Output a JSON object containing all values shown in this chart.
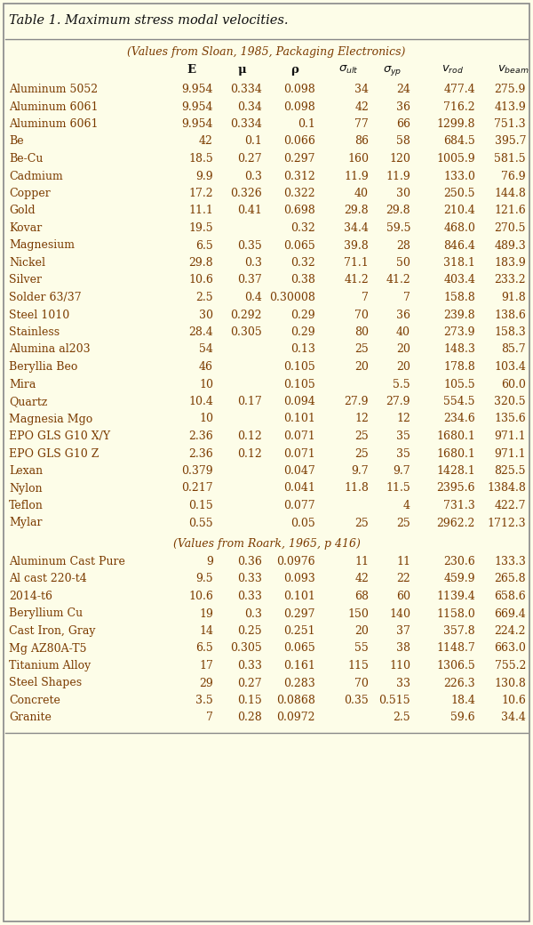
{
  "title": "Table 1. Maximum stress modal velocities.",
  "subtitle1": "(Values from Sloan, 1985, Packaging Electronics)",
  "subtitle2": "(Values from Roark, 1965, p 416)",
  "sloan_rows": [
    [
      "Aluminum 5052",
      "9.954",
      "0.334",
      "0.098",
      "34",
      "24",
      "477.4",
      "275.9"
    ],
    [
      "Aluminum 6061",
      "9.954",
      "0.34",
      "0.098",
      "42",
      "36",
      "716.2",
      "413.9"
    ],
    [
      "Aluminum 6061",
      "9.954",
      "0.334",
      "0.1",
      "77",
      "66",
      "1299.8",
      "751.3"
    ],
    [
      "Be",
      "42",
      "0.1",
      "0.066",
      "86",
      "58",
      "684.5",
      "395.7"
    ],
    [
      "Be-Cu",
      "18.5",
      "0.27",
      "0.297",
      "160",
      "120",
      "1005.9",
      "581.5"
    ],
    [
      "Cadmium",
      "9.9",
      "0.3",
      "0.312",
      "11.9",
      "11.9",
      "133.0",
      "76.9"
    ],
    [
      "Copper",
      "17.2",
      "0.326",
      "0.322",
      "40",
      "30",
      "250.5",
      "144.8"
    ],
    [
      "Gold",
      "11.1",
      "0.41",
      "0.698",
      "29.8",
      "29.8",
      "210.4",
      "121.6"
    ],
    [
      "Kovar",
      "19.5",
      "",
      "0.32",
      "34.4",
      "59.5",
      "468.0",
      "270.5"
    ],
    [
      "Magnesium",
      "6.5",
      "0.35",
      "0.065",
      "39.8",
      "28",
      "846.4",
      "489.3"
    ],
    [
      "Nickel",
      "29.8",
      "0.3",
      "0.32",
      "71.1",
      "50",
      "318.1",
      "183.9"
    ],
    [
      "Silver",
      "10.6",
      "0.37",
      "0.38",
      "41.2",
      "41.2",
      "403.4",
      "233.2"
    ],
    [
      "Solder 63/37",
      "2.5",
      "0.4",
      "0.30008",
      "7",
      "7",
      "158.8",
      "91.8"
    ],
    [
      "Steel 1010",
      "30",
      "0.292",
      "0.29",
      "70",
      "36",
      "239.8",
      "138.6"
    ],
    [
      "Stainless",
      "28.4",
      "0.305",
      "0.29",
      "80",
      "40",
      "273.9",
      "158.3"
    ],
    [
      "Alumina al203",
      "54",
      "",
      "0.13",
      "25",
      "20",
      "148.3",
      "85.7"
    ],
    [
      "Beryllia Beo",
      "46",
      "",
      "0.105",
      "20",
      "20",
      "178.8",
      "103.4"
    ],
    [
      "Mira",
      "10",
      "",
      "0.105",
      "",
      "5.5",
      "105.5",
      "60.0"
    ],
    [
      "Quartz",
      "10.4",
      "0.17",
      "0.094",
      "27.9",
      "27.9",
      "554.5",
      "320.5"
    ],
    [
      "Magnesia Mgo",
      "10",
      "",
      "0.101",
      "12",
      "12",
      "234.6",
      "135.6"
    ],
    [
      "EPO GLS G10 X/Y",
      "2.36",
      "0.12",
      "0.071",
      "25",
      "35",
      "1680.1",
      "971.1"
    ],
    [
      "EPO GLS G10 Z",
      "2.36",
      "0.12",
      "0.071",
      "25",
      "35",
      "1680.1",
      "971.1"
    ],
    [
      "Lexan",
      "0.379",
      "",
      "0.047",
      "9.7",
      "9.7",
      "1428.1",
      "825.5"
    ],
    [
      "Nylon",
      "0.217",
      "",
      "0.041",
      "11.8",
      "11.5",
      "2395.6",
      "1384.8"
    ],
    [
      "Teflon",
      "0.15",
      "",
      "0.077",
      "",
      "4",
      "731.3",
      "422.7"
    ],
    [
      "Mylar",
      "0.55",
      "",
      "0.05",
      "25",
      "25",
      "2962.2",
      "1712.3"
    ]
  ],
  "roark_rows": [
    [
      "Aluminum Cast Pure",
      "9",
      "0.36",
      "0.0976",
      "11",
      "11",
      "230.6",
      "133.3"
    ],
    [
      "Al cast 220-t4",
      "9.5",
      "0.33",
      "0.093",
      "42",
      "22",
      "459.9",
      "265.8"
    ],
    [
      "2014-t6",
      "10.6",
      "0.33",
      "0.101",
      "68",
      "60",
      "1139.4",
      "658.6"
    ],
    [
      "Beryllium Cu",
      "19",
      "0.3",
      "0.297",
      "150",
      "140",
      "1158.0",
      "669.4"
    ],
    [
      "Cast Iron, Gray",
      "14",
      "0.25",
      "0.251",
      "20",
      "37",
      "357.8",
      "224.2"
    ],
    [
      "Mg AZ80A-T5",
      "6.5",
      "0.305",
      "0.065",
      "55",
      "38",
      "1148.7",
      "663.0"
    ],
    [
      "Titanium Alloy",
      "17",
      "0.33",
      "0.161",
      "115",
      "110",
      "1306.5",
      "755.2"
    ],
    [
      "Steel Shapes",
      "29",
      "0.27",
      "0.283",
      "70",
      "33",
      "226.3",
      "130.8"
    ],
    [
      "Concrete",
      "3.5",
      "0.15",
      "0.0868",
      "0.35",
      "0.515",
      "18.4",
      "10.6"
    ],
    [
      "Granite",
      "7",
      "0.28",
      "0.0972",
      "",
      "2.5",
      "59.6",
      "34.4"
    ]
  ],
  "bg_color": "#FDFDE8",
  "border_color": "#888888",
  "text_color": "#7B3B00",
  "title_color": "#111111"
}
